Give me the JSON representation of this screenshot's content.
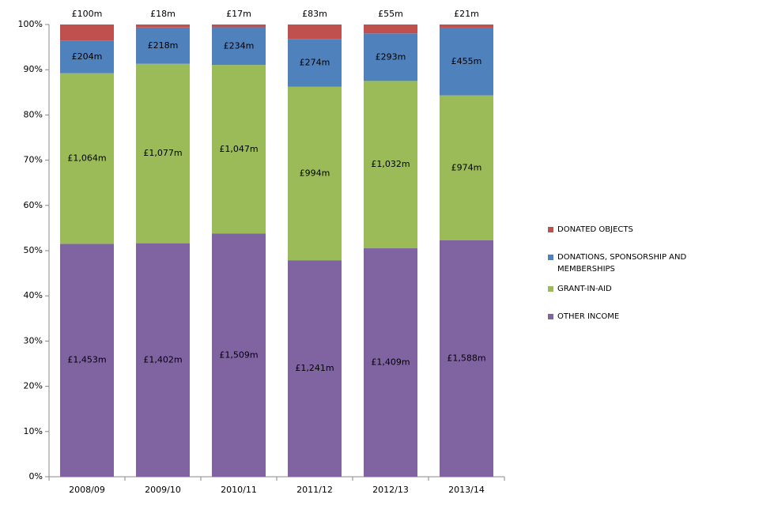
{
  "chart_data": {
    "type": "bar",
    "stacked": "percent",
    "categories": [
      "2008/09",
      "2009/10",
      "2010/11",
      "2011/12",
      "2012/13",
      "2013/14"
    ],
    "series": [
      {
        "name": "OTHER INCOME",
        "color": "#8064a2",
        "values": [
          1453,
          1402,
          1509,
          1241,
          1409,
          1588
        ],
        "value_labels": [
          "£1,453m",
          "£1,402m",
          "£1,509m",
          "£1,241m",
          "£1,409m",
          "£1,588m"
        ]
      },
      {
        "name": "GRANT-IN-AID",
        "color": "#9bbb59",
        "values": [
          1064,
          1077,
          1047,
          994,
          1032,
          974
        ],
        "value_labels": [
          "£1,064m",
          "£1,077m",
          "£1,047m",
          "£994m",
          "£1,032m",
          "£974m"
        ]
      },
      {
        "name": "DONATIONS, SPONSORSHIP AND MEMBERSHIPS",
        "color": "#4f81bd",
        "values": [
          204,
          218,
          234,
          274,
          293,
          455
        ],
        "value_labels": [
          "£204m",
          "£218m",
          "£234m",
          "£274m",
          "£293m",
          "£455m"
        ]
      },
      {
        "name": "DONATED OBJECTS",
        "color": "#c0504d",
        "values": [
          100,
          18,
          17,
          83,
          55,
          21
        ],
        "value_labels": [
          "£100m",
          "£18m",
          "£17m",
          "£83m",
          "£55m",
          "£21m"
        ]
      }
    ],
    "ylim": [
      0,
      100
    ],
    "yticks": [
      {
        "value": 0,
        "label": "0%"
      },
      {
        "value": 10,
        "label": "10%"
      },
      {
        "value": 20,
        "label": "20%"
      },
      {
        "value": 30,
        "label": "30%"
      },
      {
        "value": 40,
        "label": "40%"
      },
      {
        "value": 50,
        "label": "50%"
      },
      {
        "value": 60,
        "label": "60%"
      },
      {
        "value": 70,
        "label": "70%"
      },
      {
        "value": 80,
        "label": "80%"
      },
      {
        "value": 90,
        "label": "90%"
      },
      {
        "value": 100,
        "label": "100%"
      }
    ],
    "grid": false,
    "legend": "right"
  }
}
